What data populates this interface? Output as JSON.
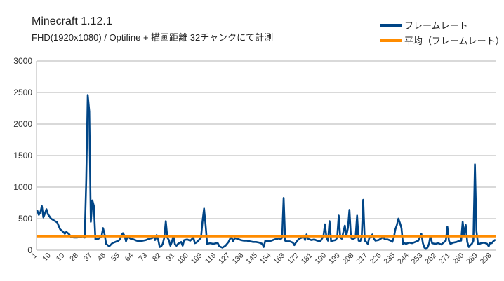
{
  "chart_data": {
    "type": "line",
    "title": "Minecraft 1.12.1",
    "subtitle": "FHD(1920x1080) / Optifine +  描画距離 32チャンクにて計測",
    "xlabel": "",
    "ylabel": "",
    "ylim": [
      0,
      3000
    ],
    "yticks": [
      0,
      500,
      1000,
      1500,
      2000,
      2500,
      3000
    ],
    "xticks": [
      1,
      10,
      19,
      28,
      37,
      46,
      55,
      64,
      73,
      82,
      91,
      100,
      109,
      118,
      127,
      136,
      145,
      154,
      163,
      172,
      181,
      190,
      199,
      208,
      217,
      226,
      235,
      244,
      253,
      262,
      271,
      280,
      289,
      298
    ],
    "x_count": 300,
    "grid": "horizontal",
    "legend_position": "top-right",
    "series": [
      {
        "name": "フレームレート",
        "color": "#004586",
        "keypoints": [
          [
            1,
            630
          ],
          [
            2,
            560
          ],
          [
            3,
            600
          ],
          [
            4,
            700
          ],
          [
            5,
            520
          ],
          [
            6,
            580
          ],
          [
            7,
            650
          ],
          [
            8,
            570
          ],
          [
            10,
            500
          ],
          [
            12,
            470
          ],
          [
            14,
            440
          ],
          [
            16,
            330
          ],
          [
            18,
            290
          ],
          [
            19,
            260
          ],
          [
            20,
            290
          ],
          [
            22,
            250
          ],
          [
            23,
            210
          ],
          [
            25,
            200
          ],
          [
            27,
            200
          ],
          [
            29,
            210
          ],
          [
            31,
            220
          ],
          [
            32,
            200
          ],
          [
            33,
            1100
          ],
          [
            34,
            2460
          ],
          [
            35,
            2200
          ],
          [
            36,
            450
          ],
          [
            37,
            790
          ],
          [
            38,
            700
          ],
          [
            39,
            170
          ],
          [
            41,
            180
          ],
          [
            43,
            220
          ],
          [
            44,
            350
          ],
          [
            45,
            250
          ],
          [
            46,
            100
          ],
          [
            47,
            80
          ],
          [
            48,
            60
          ],
          [
            50,
            110
          ],
          [
            52,
            130
          ],
          [
            54,
            150
          ],
          [
            55,
            170
          ],
          [
            56,
            240
          ],
          [
            57,
            270
          ],
          [
            58,
            230
          ],
          [
            59,
            140
          ],
          [
            60,
            220
          ],
          [
            62,
            180
          ],
          [
            64,
            170
          ],
          [
            66,
            150
          ],
          [
            68,
            140
          ],
          [
            70,
            150
          ],
          [
            72,
            160
          ],
          [
            74,
            180
          ],
          [
            76,
            190
          ],
          [
            77,
            220
          ],
          [
            78,
            160
          ],
          [
            79,
            240
          ],
          [
            80,
            170
          ],
          [
            81,
            50
          ],
          [
            82,
            60
          ],
          [
            83,
            100
          ],
          [
            84,
            200
          ],
          [
            85,
            460
          ],
          [
            86,
            200
          ],
          [
            87,
            160
          ],
          [
            88,
            70
          ],
          [
            89,
            130
          ],
          [
            90,
            230
          ],
          [
            91,
            90
          ],
          [
            92,
            70
          ],
          [
            93,
            100
          ],
          [
            95,
            130
          ],
          [
            96,
            70
          ],
          [
            97,
            160
          ],
          [
            99,
            170
          ],
          [
            101,
            150
          ],
          [
            103,
            200
          ],
          [
            104,
            110
          ],
          [
            105,
            120
          ],
          [
            107,
            170
          ],
          [
            108,
            200
          ],
          [
            109,
            460
          ],
          [
            110,
            660
          ],
          [
            111,
            400
          ],
          [
            112,
            100
          ],
          [
            114,
            110
          ],
          [
            116,
            100
          ],
          [
            118,
            110
          ],
          [
            119,
            110
          ],
          [
            120,
            60
          ],
          [
            122,
            40
          ],
          [
            124,
            70
          ],
          [
            126,
            130
          ],
          [
            127,
            180
          ],
          [
            128,
            200
          ],
          [
            129,
            140
          ],
          [
            130,
            190
          ],
          [
            132,
            180
          ],
          [
            134,
            160
          ],
          [
            136,
            150
          ],
          [
            138,
            150
          ],
          [
            140,
            140
          ],
          [
            142,
            130
          ],
          [
            144,
            130
          ],
          [
            146,
            120
          ],
          [
            148,
            100
          ],
          [
            149,
            50
          ],
          [
            150,
            150
          ],
          [
            152,
            140
          ],
          [
            154,
            150
          ],
          [
            156,
            170
          ],
          [
            158,
            180
          ],
          [
            159,
            190
          ],
          [
            160,
            170
          ],
          [
            161,
            200
          ],
          [
            162,
            830
          ],
          [
            163,
            150
          ],
          [
            164,
            140
          ],
          [
            166,
            140
          ],
          [
            168,
            120
          ],
          [
            169,
            80
          ],
          [
            170,
            120
          ],
          [
            172,
            180
          ],
          [
            174,
            200
          ],
          [
            175,
            230
          ],
          [
            176,
            160
          ],
          [
            177,
            250
          ],
          [
            178,
            180
          ],
          [
            180,
            160
          ],
          [
            182,
            170
          ],
          [
            184,
            150
          ],
          [
            186,
            140
          ],
          [
            188,
            220
          ],
          [
            189,
            410
          ],
          [
            190,
            200
          ],
          [
            191,
            150
          ],
          [
            192,
            460
          ],
          [
            193,
            140
          ],
          [
            194,
            150
          ],
          [
            196,
            160
          ],
          [
            197,
            200
          ],
          [
            198,
            550
          ],
          [
            199,
            200
          ],
          [
            200,
            180
          ],
          [
            202,
            390
          ],
          [
            203,
            230
          ],
          [
            204,
            350
          ],
          [
            205,
            640
          ],
          [
            206,
            200
          ],
          [
            207,
            170
          ],
          [
            209,
            200
          ],
          [
            210,
            550
          ],
          [
            211,
            150
          ],
          [
            212,
            140
          ],
          [
            213,
            200
          ],
          [
            214,
            800
          ],
          [
            215,
            150
          ],
          [
            216,
            130
          ],
          [
            217,
            100
          ],
          [
            218,
            200
          ],
          [
            219,
            200
          ],
          [
            220,
            250
          ],
          [
            221,
            180
          ],
          [
            222,
            150
          ],
          [
            224,
            160
          ],
          [
            226,
            190
          ],
          [
            227,
            230
          ],
          [
            228,
            170
          ],
          [
            230,
            170
          ],
          [
            232,
            150
          ],
          [
            233,
            130
          ],
          [
            234,
            200
          ],
          [
            235,
            330
          ],
          [
            236,
            400
          ],
          [
            237,
            500
          ],
          [
            238,
            430
          ],
          [
            239,
            350
          ],
          [
            240,
            100
          ],
          [
            241,
            110
          ],
          [
            242,
            100
          ],
          [
            244,
            120
          ],
          [
            246,
            110
          ],
          [
            248,
            130
          ],
          [
            250,
            150
          ],
          [
            251,
            200
          ],
          [
            252,
            260
          ],
          [
            253,
            110
          ],
          [
            254,
            40
          ],
          [
            255,
            20
          ],
          [
            256,
            40
          ],
          [
            257,
            100
          ],
          [
            258,
            230
          ],
          [
            259,
            110
          ],
          [
            261,
            100
          ],
          [
            263,
            110
          ],
          [
            265,
            90
          ],
          [
            266,
            110
          ],
          [
            268,
            150
          ],
          [
            269,
            370
          ],
          [
            270,
            150
          ],
          [
            271,
            100
          ],
          [
            273,
            120
          ],
          [
            275,
            130
          ],
          [
            277,
            150
          ],
          [
            278,
            150
          ],
          [
            279,
            450
          ],
          [
            280,
            250
          ],
          [
            281,
            400
          ],
          [
            282,
            130
          ],
          [
            283,
            50
          ],
          [
            284,
            80
          ],
          [
            285,
            100
          ],
          [
            286,
            150
          ],
          [
            287,
            1360
          ],
          [
            288,
            300
          ],
          [
            289,
            100
          ],
          [
            290,
            100
          ],
          [
            291,
            110
          ],
          [
            293,
            120
          ],
          [
            295,
            100
          ],
          [
            296,
            60
          ],
          [
            297,
            120
          ],
          [
            298,
            110
          ],
          [
            299,
            140
          ],
          [
            300,
            160
          ]
        ]
      },
      {
        "name": "平均（フレームレート）",
        "color": "#ff8c00",
        "value": 222
      }
    ]
  }
}
